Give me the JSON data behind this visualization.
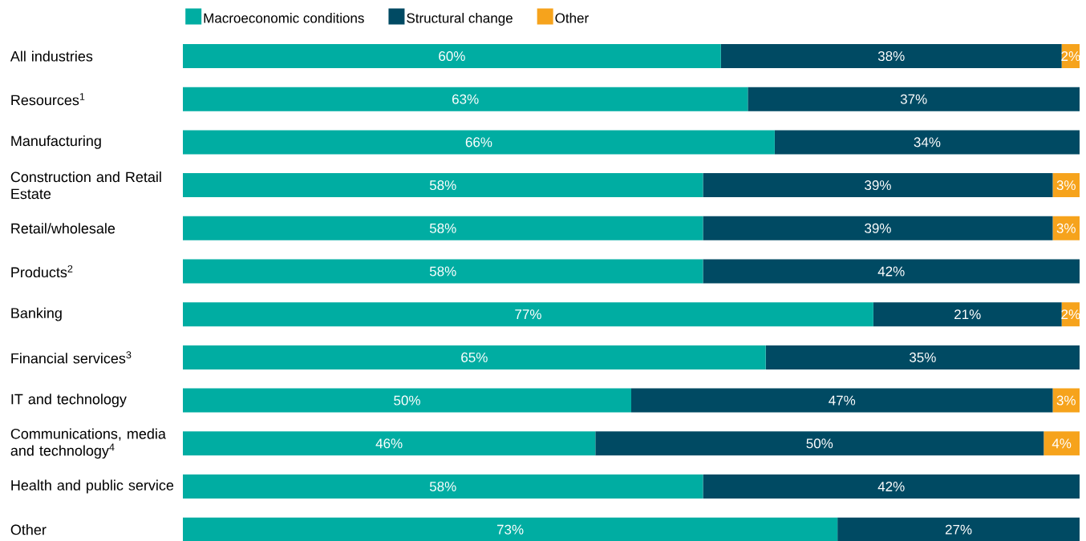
{
  "chart_data": {
    "type": "bar",
    "orientation": "horizontal",
    "stacked": true,
    "legend": "top",
    "categories": [
      "All industries",
      "Resources$^{1}$",
      "Manufacturing",
      "Construction and Retail Estate",
      "Retail/wholesale",
      "Products$^{2}$",
      "Banking",
      "Financial services$^{3}$",
      "IT and technology",
      "Communications, media and technology$^{4}$",
      "Health and public service",
      "Other"
    ],
    "series": [
      {
        "name": "Macroeconomic conditions",
        "color": "#00ada2",
        "values": [
          60,
          63,
          66,
          58,
          58,
          58,
          77,
          65,
          50,
          46,
          58,
          73
        ],
        "value_labels": [
          "60%",
          "63%",
          "66%",
          "58%",
          "58%",
          "58%",
          "77%",
          "65%",
          "50%",
          "46%",
          "58%",
          "73%"
        ]
      },
      {
        "name": "Structural change",
        "color": "#004a63",
        "values": [
          38,
          37,
          34,
          39,
          39,
          42,
          21,
          35,
          47,
          50,
          42,
          27
        ],
        "value_labels": [
          "38%",
          "37%",
          "34%",
          "39%",
          "39%",
          "42%",
          "21%",
          "35%",
          "47%",
          "50%",
          "42%",
          "27%"
        ]
      },
      {
        "name": "Other",
        "color": "#f6a31c",
        "values": [
          2,
          null,
          null,
          3,
          3,
          null,
          2,
          null,
          3,
          4,
          null,
          null
        ],
        "value_labels": [
          "2%",
          null,
          null,
          "3%",
          "3%",
          null,
          "2%",
          null,
          "3%",
          "4%",
          null,
          null
        ]
      }
    ]
  }
}
